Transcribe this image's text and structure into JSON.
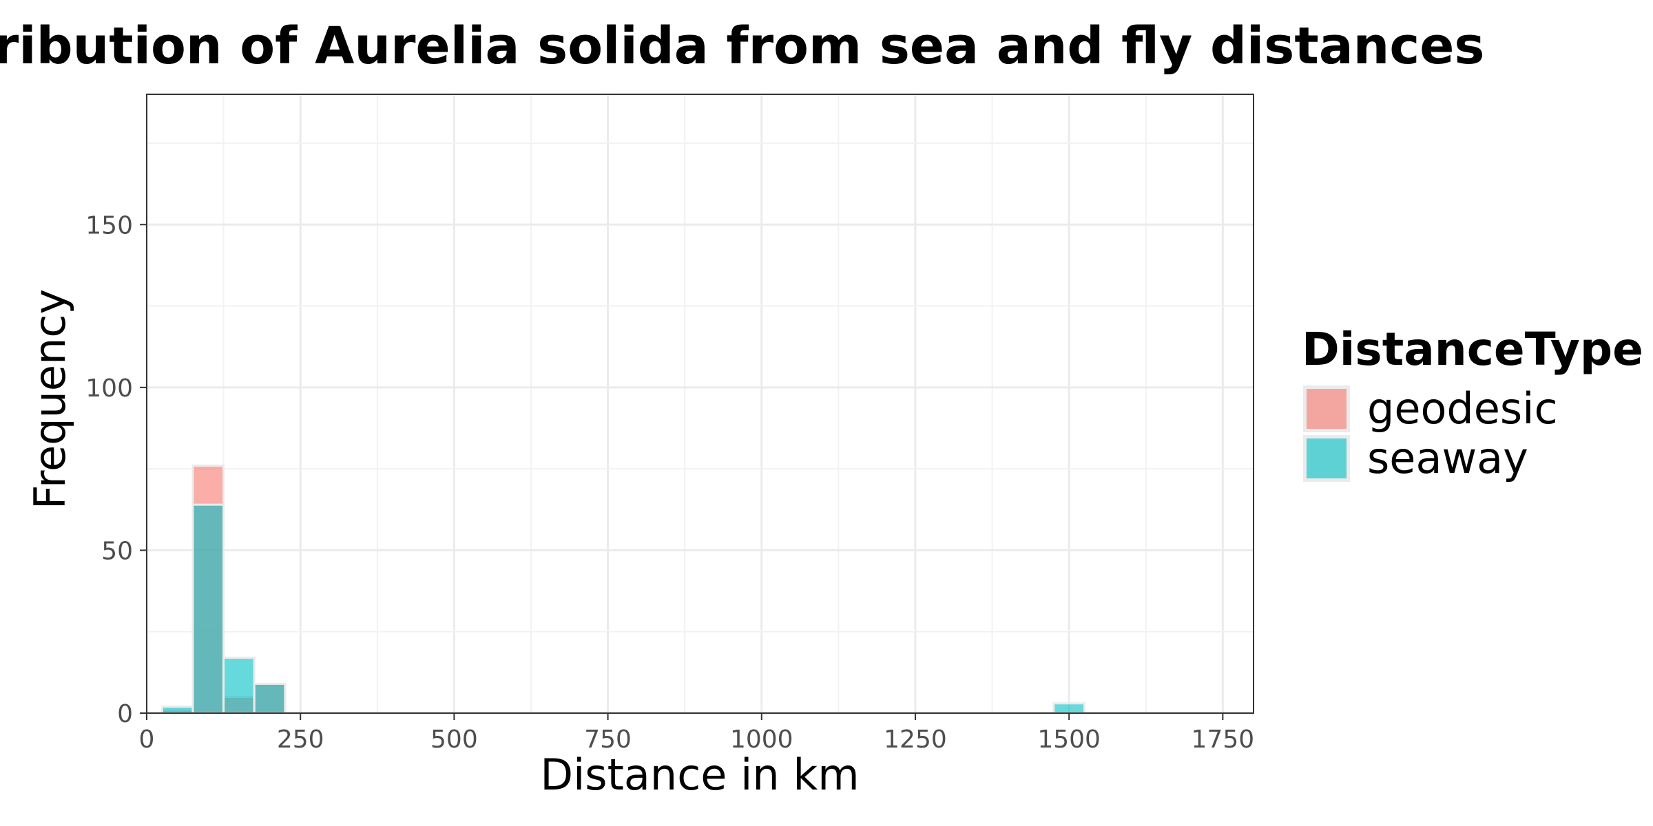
{
  "chart_data": {
    "type": "bar",
    "title": "Distribution of Aurelia solida from sea and fly distances",
    "xlabel": "Distance in km",
    "ylabel": "Frequency",
    "xlim": [
      0,
      1800
    ],
    "ylim": [
      0,
      190
    ],
    "x_ticks": [
      0,
      250,
      500,
      750,
      1000,
      1250,
      1500,
      1750
    ],
    "y_ticks": [
      0,
      50,
      100,
      150
    ],
    "x_tick_labels": [
      "0",
      "250",
      "500",
      "750",
      "1000",
      "1250",
      "1500",
      "1750"
    ],
    "y_tick_labels": [
      "0",
      "50",
      "100",
      "150"
    ],
    "bin_width": 50,
    "grid": true,
    "legend_position": "right",
    "legend_title": "DistanceType",
    "series": [
      {
        "name": "geodesic",
        "color": "#F8766D",
        "bins": [
          {
            "start": 25,
            "end": 75,
            "count": 1
          },
          {
            "start": 75,
            "end": 125,
            "count": 76
          },
          {
            "start": 125,
            "end": 175,
            "count": 5
          },
          {
            "start": 175,
            "end": 225,
            "count": 9
          }
        ]
      },
      {
        "name": "seaway",
        "color": "#00BFC4",
        "bins": [
          {
            "start": 25,
            "end": 75,
            "count": 2
          },
          {
            "start": 75,
            "end": 125,
            "count": 64
          },
          {
            "start": 125,
            "end": 175,
            "count": 17
          },
          {
            "start": 175,
            "end": 225,
            "count": 9
          },
          {
            "start": 1475,
            "end": 1525,
            "count": 3
          }
        ]
      }
    ]
  }
}
